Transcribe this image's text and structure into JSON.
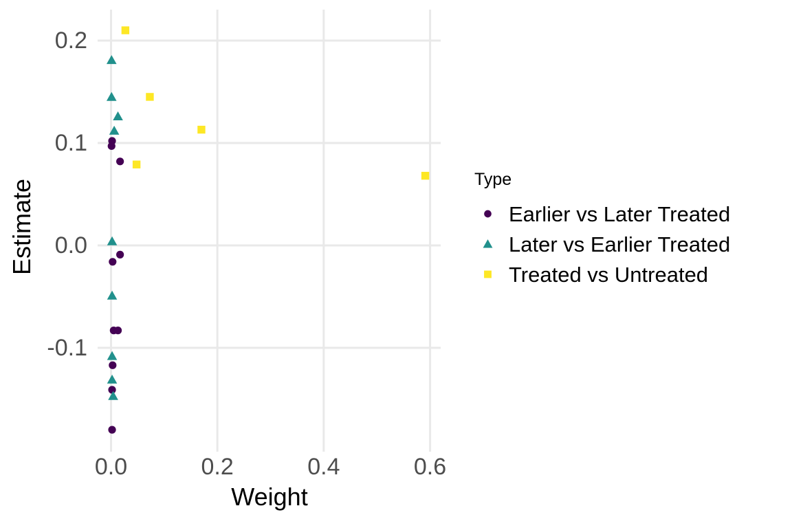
{
  "chart_data": {
    "type": "scatter",
    "title": "",
    "xlabel": "Weight",
    "ylabel": "Estimate",
    "legend_title": "Type",
    "legend_position": "right",
    "grid": "major-only",
    "grid_color": "#E9E9E9",
    "tick_label_color": "#4d4d4d",
    "axis_title_color": "#000000",
    "background_color": "#ffffff",
    "xlim": [
      -0.0252,
      0.62
    ],
    "ylim": [
      -0.2014,
      0.2302
    ],
    "xticks": {
      "values": [
        0.0,
        0.2,
        0.4,
        0.6
      ],
      "labels": [
        "0.0",
        "0.2",
        "0.4",
        "0.6"
      ]
    },
    "yticks": {
      "values": [
        0.2,
        0.1,
        0.0,
        -0.1
      ],
      "labels": [
        "0.2",
        "0.1",
        "0.0",
        "-0.1"
      ]
    },
    "series": [
      {
        "name": "Earlier vs Later Treated",
        "shape": "circle",
        "color": "#440154",
        "points": [
          [
            0.002,
            0.102
          ],
          [
            0.001,
            0.097
          ],
          [
            0.017,
            0.082
          ],
          [
            0.017,
            -0.009
          ],
          [
            0.003,
            -0.016
          ],
          [
            0.005,
            -0.083
          ],
          [
            0.013,
            -0.083
          ],
          [
            0.003,
            -0.117
          ],
          [
            0.002,
            -0.141
          ],
          [
            0.002,
            -0.18
          ]
        ]
      },
      {
        "name": "Later vs Earlier Treated",
        "shape": "triangle",
        "color": "#21908C",
        "points": [
          [
            0.001,
            0.181
          ],
          [
            0.001,
            0.145
          ],
          [
            0.013,
            0.126
          ],
          [
            0.006,
            0.112
          ],
          [
            0.002,
            0.004
          ],
          [
            0.002,
            -0.049
          ],
          [
            0.002,
            -0.108
          ],
          [
            0.002,
            -0.131
          ],
          [
            0.004,
            -0.147
          ]
        ]
      },
      {
        "name": "Treated vs Untreated",
        "shape": "square",
        "color": "#FDE725",
        "points": [
          [
            0.027,
            0.21
          ],
          [
            0.073,
            0.145
          ],
          [
            0.17,
            0.113
          ],
          [
            0.048,
            0.079
          ],
          [
            0.591,
            0.068
          ]
        ]
      }
    ]
  }
}
